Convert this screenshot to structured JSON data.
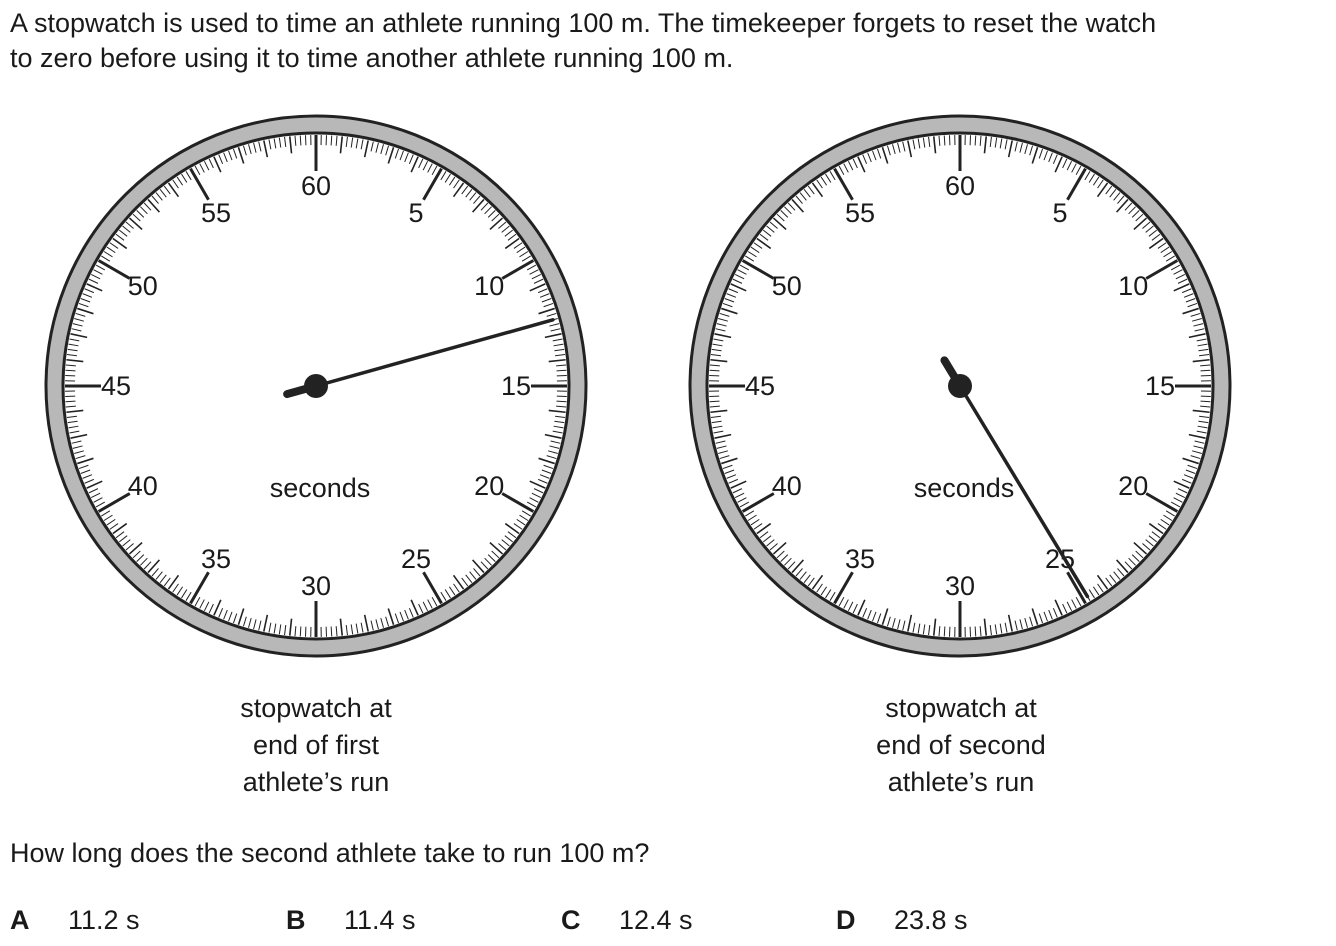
{
  "intro": {
    "line1": "A stopwatch is used to time an athlete running 100 m. The timekeeper forgets to reset the watch",
    "line2": "to zero before using it to time another athlete running 100 m."
  },
  "dial": {
    "numbers": [
      "60",
      "5",
      "10",
      "15",
      "20",
      "25",
      "30",
      "35",
      "40",
      "45",
      "50",
      "55"
    ],
    "unit_label": "seconds",
    "colors": {
      "rim": "#b8b8b8",
      "outline": "#222222",
      "face": "#ffffff"
    }
  },
  "stopwatches": [
    {
      "hand_seconds": 12.4,
      "caption": [
        "stopwatch at",
        "end of first",
        "athlete’s run"
      ]
    },
    {
      "hand_seconds": 24.8,
      "caption": [
        "stopwatch at",
        "end of second",
        "athlete’s run"
      ]
    }
  ],
  "question": "How long does the second athlete take to run 100 m?",
  "options": [
    {
      "letter": "A",
      "value": "11.2 s"
    },
    {
      "letter": "B",
      "value": "11.4 s"
    },
    {
      "letter": "C",
      "value": "12.4 s"
    },
    {
      "letter": "D",
      "value": "23.8 s"
    }
  ]
}
